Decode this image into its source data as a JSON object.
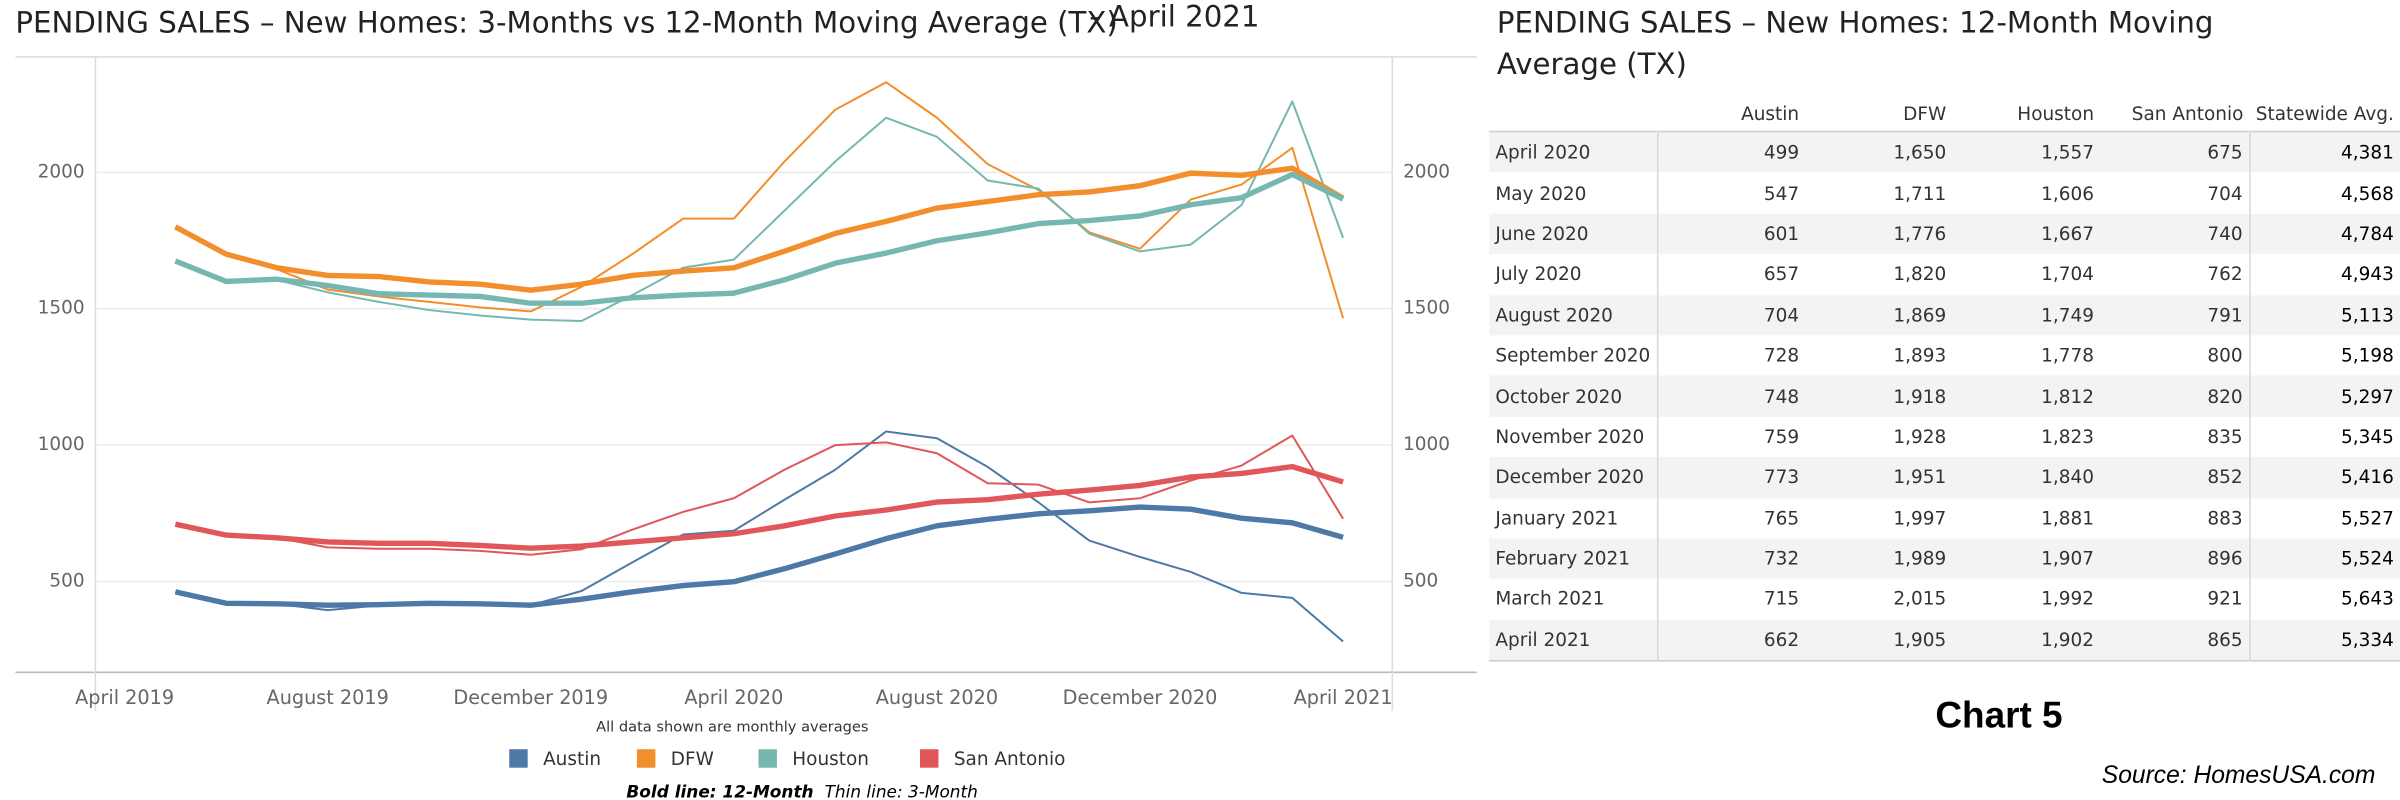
{
  "chart_data": {
    "type": "line",
    "title": "PENDING SALES – New Homes: 3-Months vs 12-Month Moving Average (TX)",
    "date_label": "- April 2021",
    "note": "All data shown are monthly averages",
    "bold_note": "Bold line: 12-Month",
    "thin_note": "Thin line: 3-Month",
    "categories": [
      "April 2019",
      null,
      null,
      null,
      "August 2019",
      null,
      null,
      null,
      "December 2019",
      null,
      null,
      null,
      "April 2020",
      null,
      null,
      null,
      "August 2020",
      null,
      null,
      null,
      "December 2020",
      null,
      null,
      null,
      "April 2021"
    ],
    "ylim": [
      167,
      2423
    ],
    "yticks": [
      500,
      1000,
      1500,
      2000
    ],
    "grid": true,
    "series": [
      {
        "name": "Austin",
        "color": "#4e79a7",
        "values": [
          null,
          462,
          420,
          418,
          413,
          415,
          420,
          418,
          413,
          435,
          462,
          485,
          499,
          547,
          601,
          657,
          704,
          728,
          748,
          759,
          773,
          765,
          732,
          715,
          662
        ],
        "thin_values": [
          null,
          462,
          420,
          418,
          395,
          412,
          420,
          418,
          413,
          465,
          570,
          672,
          686,
          800,
          910,
          1050,
          1025,
          920,
          790,
          650,
          590,
          535,
          458,
          440,
          280
        ]
      },
      {
        "name": "DFW",
        "color": "#f28e2b",
        "values": [
          null,
          1800,
          1700,
          1650,
          1622,
          1618,
          1598,
          1590,
          1568,
          1590,
          1622,
          1638,
          1650,
          1711,
          1776,
          1820,
          1869,
          1893,
          1918,
          1928,
          1951,
          1997,
          1989,
          2015,
          1905
        ],
        "thin_values": [
          null,
          1800,
          1700,
          1645,
          1570,
          1545,
          1525,
          1505,
          1490,
          1580,
          1700,
          1830,
          1830,
          2040,
          2230,
          2330,
          2200,
          2030,
          1935,
          1780,
          1720,
          1900,
          1955,
          2090,
          1465
        ]
      },
      {
        "name": "Houston",
        "color": "#76b7b2",
        "values": [
          null,
          1675,
          1600,
          1608,
          1585,
          1555,
          1550,
          1545,
          1520,
          1520,
          1540,
          1550,
          1557,
          1606,
          1667,
          1704,
          1749,
          1778,
          1812,
          1823,
          1840,
          1881,
          1907,
          1992,
          1902
        ],
        "thin_values": [
          null,
          1675,
          1600,
          1605,
          1560,
          1525,
          1495,
          1475,
          1460,
          1455,
          1550,
          1650,
          1680,
          1860,
          2040,
          2200,
          2130,
          1970,
          1940,
          1775,
          1710,
          1735,
          1880,
          2260,
          1760
        ]
      },
      {
        "name": "San Antonio",
        "color": "#e15759",
        "values": [
          null,
          710,
          670,
          660,
          645,
          640,
          640,
          632,
          622,
          630,
          645,
          660,
          675,
          704,
          740,
          762,
          791,
          800,
          820,
          835,
          852,
          883,
          896,
          921,
          865
        ],
        "thin_values": [
          null,
          710,
          670,
          660,
          625,
          620,
          620,
          612,
          598,
          618,
          690,
          755,
          805,
          910,
          1000,
          1010,
          970,
          860,
          855,
          790,
          805,
          870,
          925,
          1035,
          730
        ]
      }
    ]
  },
  "table": {
    "title": "PENDING SALES – New Homes:  12-Month Moving Average (TX)",
    "columns": [
      "Austin",
      "DFW",
      "Houston",
      "San Antonio",
      "Statewide Avg."
    ],
    "rows": [
      [
        "April 2020",
        "499",
        "1,650",
        "1,557",
        "675",
        "4,381"
      ],
      [
        "May 2020",
        "547",
        "1,711",
        "1,606",
        "704",
        "4,568"
      ],
      [
        "June 2020",
        "601",
        "1,776",
        "1,667",
        "740",
        "4,784"
      ],
      [
        "July 2020",
        "657",
        "1,820",
        "1,704",
        "762",
        "4,943"
      ],
      [
        "August 2020",
        "704",
        "1,869",
        "1,749",
        "791",
        "5,113"
      ],
      [
        "September 2020",
        "728",
        "1,893",
        "1,778",
        "800",
        "5,198"
      ],
      [
        "October 2020",
        "748",
        "1,918",
        "1,812",
        "820",
        "5,297"
      ],
      [
        "November 2020",
        "759",
        "1,928",
        "1,823",
        "835",
        "5,345"
      ],
      [
        "December 2020",
        "773",
        "1,951",
        "1,840",
        "852",
        "5,416"
      ],
      [
        "January 2021",
        "765",
        "1,997",
        "1,881",
        "883",
        "5,527"
      ],
      [
        "February 2021",
        "732",
        "1,989",
        "1,907",
        "896",
        "5,524"
      ],
      [
        "March 2021",
        "715",
        "2,015",
        "1,992",
        "921",
        "5,643"
      ],
      [
        "April 2021",
        "662",
        "1,905",
        "1,902",
        "865",
        "5,334"
      ]
    ]
  },
  "chart_label": "Chart 5",
  "source": "Source: HomesUSA.com"
}
